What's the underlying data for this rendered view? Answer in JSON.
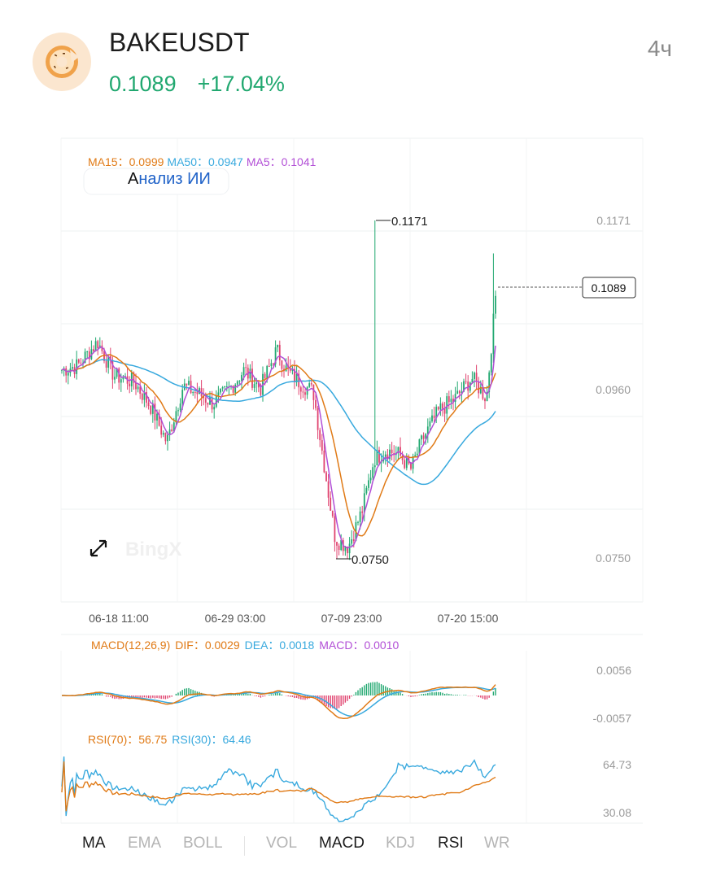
{
  "header": {
    "symbol": "BAKEUSDT",
    "price": "0.1089",
    "change": "+17.04%",
    "timeframe": "4ч",
    "logo_icon": "donut-icon"
  },
  "colors": {
    "up": "#21a870",
    "down": "#e0436f",
    "ma15": "#e07a16",
    "ma50": "#38a9de",
    "ma5": "#b24fd6"
  },
  "main_chart": {
    "ma_legend": {
      "ma15": "MA15：0.0999",
      "ma50": "MA50：0.0947",
      "ma5": "MA5：0.1041"
    },
    "ai_analysis": {
      "prefix": "А",
      "rest": "нализ ИИ"
    },
    "y_ticks": [
      "0.1171",
      "0.0960",
      "0.0750"
    ],
    "x_ticks": [
      "06-18 11:00",
      "06-29 03:00",
      "07-09 23:00",
      "07-20 15:00"
    ],
    "high_label": "0.1171",
    "low_label": "0.0750",
    "current_label": "0.1089",
    "watermark": "BingX"
  },
  "macd": {
    "legend": {
      "name": "MACD(12,26,9)",
      "dif": "DIF：0.0029",
      "dea": "DEA：0.0018",
      "macd": "MACD：0.0010"
    },
    "y_ticks": [
      "0.0056",
      "-0.0057"
    ]
  },
  "rsi": {
    "legend": {
      "rsi70": "RSI(70)：56.75",
      "rsi30": "RSI(30)：64.46"
    },
    "y_ticks": [
      "64.73",
      "30.08"
    ]
  },
  "indicator_tabs": [
    {
      "label": "MA",
      "active": true
    },
    {
      "label": "EMA",
      "active": false
    },
    {
      "label": "BOLL",
      "active": false
    },
    {
      "label": "VOL",
      "active": false
    },
    {
      "label": "MACD",
      "active": true
    },
    {
      "label": "KDJ",
      "active": false
    },
    {
      "label": "RSI",
      "active": true
    },
    {
      "label": "WR",
      "active": false
    }
  ],
  "chart_data": {
    "type": "candlestick",
    "symbol": "BAKEUSDT",
    "interval": "4ч",
    "x_tick_labels": [
      "06-18 11:00",
      "06-29 03:00",
      "07-09 23:00",
      "07-20 15:00"
    ],
    "y_tick_labels": [
      "0.1171",
      "0.0960",
      "0.0750"
    ],
    "ylim": [
      0.075,
      0.1171
    ],
    "high": 0.1171,
    "low": 0.075,
    "last_close": 0.1089,
    "ma_series": [
      {
        "name": "MA15",
        "last": 0.0999
      },
      {
        "name": "MA50",
        "last": 0.0947
      },
      {
        "name": "MA5",
        "last": 0.1041
      }
    ],
    "macd": {
      "dif": 0.0029,
      "dea": 0.0018,
      "macd": 0.001,
      "ylim": [
        -0.0057,
        0.0056
      ]
    },
    "rsi": {
      "rsi70": 56.75,
      "rsi30": 64.46,
      "ylim": [
        30.08,
        64.73
      ]
    }
  }
}
